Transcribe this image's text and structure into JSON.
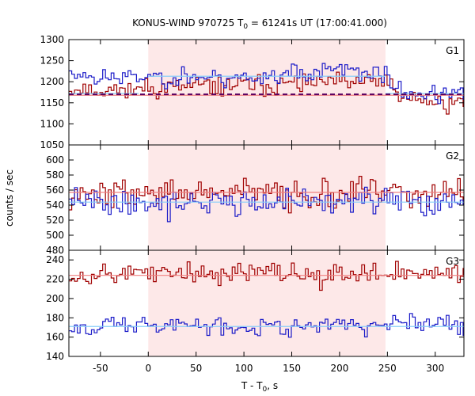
{
  "chart_data": {
    "type": "line",
    "title_parts": {
      "pre": "KONUS-WIND 970725 T",
      "sub": "0",
      "post": " = 61241s UT (17:00:41.000)"
    },
    "xlabel_parts": {
      "pre": "T - T",
      "sub": "0",
      "post": ", s"
    },
    "ylabel": "counts / sec",
    "xlim": [
      -83,
      330
    ],
    "xticks": [
      -50,
      0,
      50,
      100,
      150,
      200,
      250,
      300
    ],
    "shaded_interval": [
      0,
      248
    ],
    "colors": {
      "red": "#a00000",
      "blue": "#1a1ac8",
      "red_fit": "#f08080",
      "blue_fit": "#87cefa",
      "dark_dash": "#5a0060",
      "shade": "#fde8e8"
    },
    "panels": [
      {
        "name": "G1",
        "ylim": [
          1050,
          1300
        ],
        "yticks": [
          1050,
          1100,
          1150,
          1200,
          1250,
          1300
        ],
        "series": [
          {
            "color": "red",
            "keypoints": [
              [
                -83,
                1185
              ],
              [
                -40,
                1180
              ],
              [
                0,
                1185
              ],
              [
                100,
                1192
              ],
              [
                200,
                1197
              ],
              [
                248,
                1200
              ],
              [
                260,
                1165
              ],
              [
                300,
                1150
              ],
              [
                330,
                1150
              ]
            ],
            "noise": 16,
            "seed": 11
          },
          {
            "color": "blue",
            "keypoints": [
              [
                -83,
                1222
              ],
              [
                -40,
                1208
              ],
              [
                0,
                1212
              ],
              [
                100,
                1210
              ],
              [
                200,
                1228
              ],
              [
                248,
                1215
              ],
              [
                260,
                1175
              ],
              [
                300,
                1170
              ],
              [
                330,
                1168
              ]
            ],
            "noise": 16,
            "seed": 23
          }
        ],
        "fits": [
          {
            "color": "blue_fit",
            "segments": [
              [
                [
                  -83,
                  1172
                ],
                [
                  -10,
                  1172
                ]
              ],
              [
                [
                  0,
                  1213
                ],
                [
                  248,
                  1213
                ]
              ],
              [
                [
                  248,
                  1172
                ],
                [
                  330,
                  1172
                ]
              ]
            ]
          },
          {
            "color": "red_fit",
            "segments": [
              [
                [
                  -83,
                  1168
                ],
                [
                  330,
                  1168
                ]
              ]
            ]
          }
        ],
        "dashed": {
          "color": "dark_dash",
          "y": 1170
        }
      },
      {
        "name": "G2",
        "ylim": [
          480,
          620
        ],
        "yticks": [
          480,
          500,
          520,
          540,
          560,
          580,
          600
        ],
        "series": [
          {
            "color": "red",
            "keypoints": [
              [
                -83,
                556
              ],
              [
                100,
                556
              ],
              [
                248,
                555
              ],
              [
                330,
                554
              ]
            ],
            "noise": 14,
            "seed": 37
          },
          {
            "color": "blue",
            "keypoints": [
              [
                -83,
                544
              ],
              [
                100,
                544
              ],
              [
                248,
                545
              ],
              [
                330,
                543
              ]
            ],
            "noise": 13,
            "seed": 41
          }
        ],
        "fits": [
          {
            "color": "red_fit",
            "segments": [
              [
                [
                  -83,
                  557
                ],
                [
                  330,
                  557
                ]
              ]
            ]
          },
          {
            "color": "blue_fit",
            "segments": [
              [
                [
                  -83,
                  544
                ],
                [
                  330,
                  544
                ]
              ]
            ]
          }
        ]
      },
      {
        "name": "G3",
        "ylim": [
          140,
          250
        ],
        "yticks": [
          140,
          160,
          180,
          200,
          220,
          240
        ],
        "series": [
          {
            "color": "red",
            "keypoints": [
              [
                -83,
                226
              ],
              [
                100,
                226
              ],
              [
                248,
                227
              ],
              [
                330,
                225
              ]
            ],
            "noise": 8,
            "seed": 53
          },
          {
            "color": "blue",
            "keypoints": [
              [
                -83,
                172
              ],
              [
                100,
                172
              ],
              [
                248,
                172
              ],
              [
                330,
                172
              ]
            ],
            "noise": 7,
            "seed": 67
          }
        ],
        "fits": [
          {
            "color": "red_fit",
            "segments": [
              [
                [
                  -83,
                  224
                ],
                [
                  330,
                  224
                ]
              ]
            ]
          },
          {
            "color": "blue_fit",
            "segments": [
              [
                [
                  -83,
                  171
                ],
                [
                  330,
                  171
                ]
              ]
            ]
          }
        ]
      }
    ]
  }
}
